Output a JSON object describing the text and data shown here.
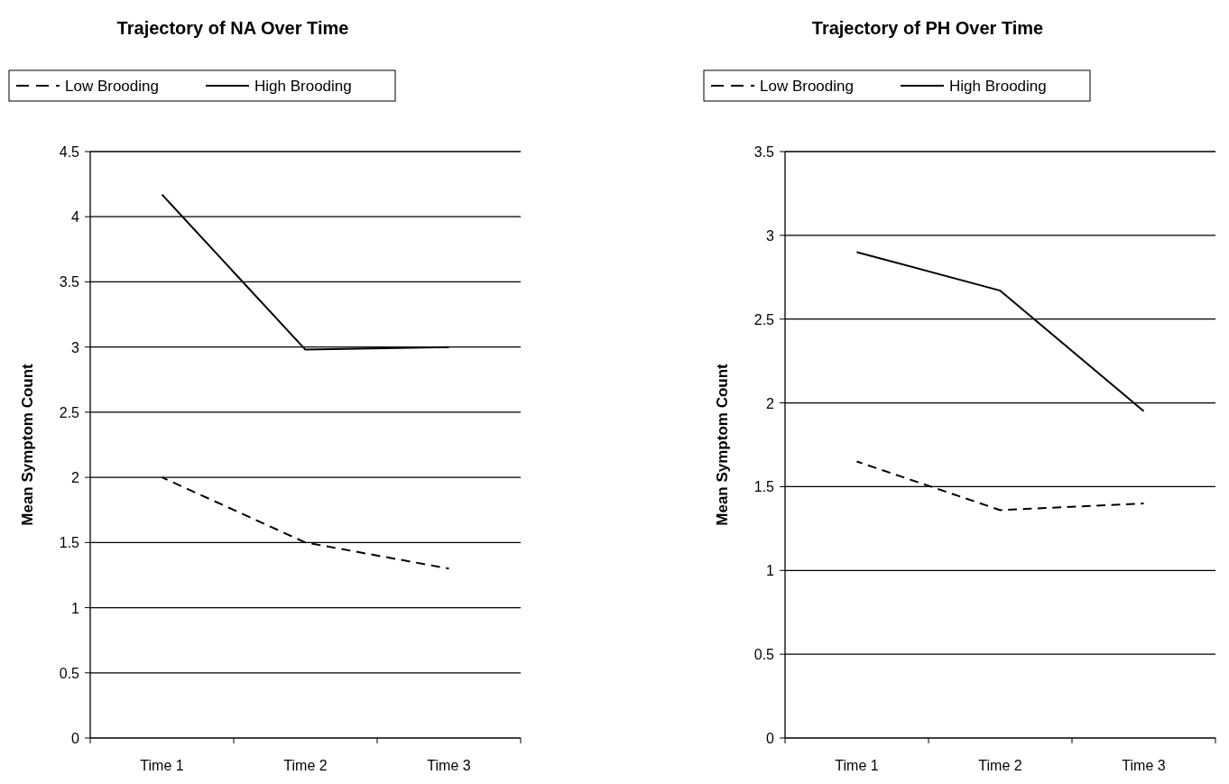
{
  "chart_data": [
    {
      "type": "line",
      "title": "Trajectory of NA Over Time",
      "ylabel": "Mean Symptom Count",
      "categories": [
        "Time 1",
        "Time 2",
        "Time 3"
      ],
      "series": [
        {
          "name": "Low Brooding",
          "color": "#000000",
          "line_style": "dashed",
          "values": [
            2.0,
            1.5,
            1.3
          ]
        },
        {
          "name": "High Brooding",
          "color": "#000000",
          "line_style": "solid",
          "values": [
            4.17,
            2.98,
            3.0
          ]
        }
      ],
      "ylim": [
        0,
        4.5
      ],
      "yticks": [
        0,
        0.5,
        1,
        1.5,
        2,
        2.5,
        3,
        3.5,
        4,
        4.5
      ],
      "grid": "y",
      "legend": "top"
    },
    {
      "type": "line",
      "title": "Trajectory of PH Over Time",
      "ylabel": "Mean Symptom Count",
      "categories": [
        "Time 1",
        "Time 2",
        "Time 3"
      ],
      "series": [
        {
          "name": "Low Brooding",
          "color": "#000000",
          "line_style": "dashed",
          "values": [
            1.65,
            1.36,
            1.4
          ]
        },
        {
          "name": "High Brooding",
          "color": "#000000",
          "line_style": "solid",
          "values": [
            2.9,
            2.67,
            1.95
          ]
        }
      ],
      "ylim": [
        0,
        3.5
      ],
      "yticks": [
        0,
        0.5,
        1,
        1.5,
        2,
        2.5,
        3,
        3.5
      ],
      "grid": "y",
      "legend": "top"
    }
  ]
}
